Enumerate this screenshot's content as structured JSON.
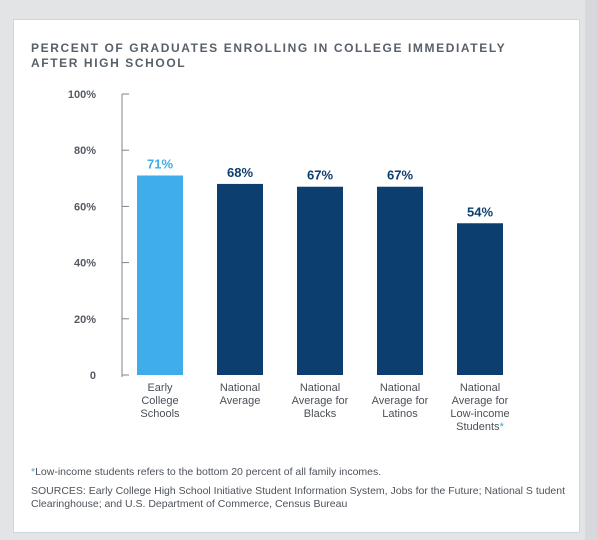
{
  "chart_data": {
    "type": "bar",
    "title": "PERCENT OF GRADUATES ENROLLING IN COLLEGE IMMEDIATELY AFTER HIGH SCHOOL",
    "xlabel": "",
    "ylabel": "",
    "ylim": [
      0,
      100
    ],
    "yticks": [
      0,
      20,
      40,
      60,
      80,
      100
    ],
    "ytick_labels": [
      "0",
      "20%",
      "40%",
      "60%",
      "80%",
      "100%"
    ],
    "grid": false,
    "categories": [
      [
        "Early",
        "College",
        "Schools"
      ],
      [
        "National",
        "Average"
      ],
      [
        "National",
        "Average for",
        "Blacks"
      ],
      [
        "National",
        "Average for",
        "Latinos"
      ],
      [
        "National",
        "Average for",
        "Low-income",
        "Students"
      ]
    ],
    "values": [
      71,
      68,
      67,
      67,
      54
    ],
    "data_labels": [
      "71%",
      "68%",
      "67%",
      "67%",
      "54%"
    ],
    "colors": [
      "#3eadea",
      "#0d3e70",
      "#0d3e70",
      "#0d3e70",
      "#0d3e70"
    ],
    "highlight_label_color": "#3eadea",
    "label_color": "#0d3e70",
    "category_asterisk_index": 4,
    "asterisk": "*"
  },
  "footnote": {
    "asterisk": "*",
    "text": "Low-income students refers to the bottom 20 percent of all family incomes."
  },
  "sources": "SOURCES: Early College High School Initiative Student Information System, Jobs for the Future; National S tudent Clearinghouse; and U.S. Department of Commerce, Census Bureau"
}
